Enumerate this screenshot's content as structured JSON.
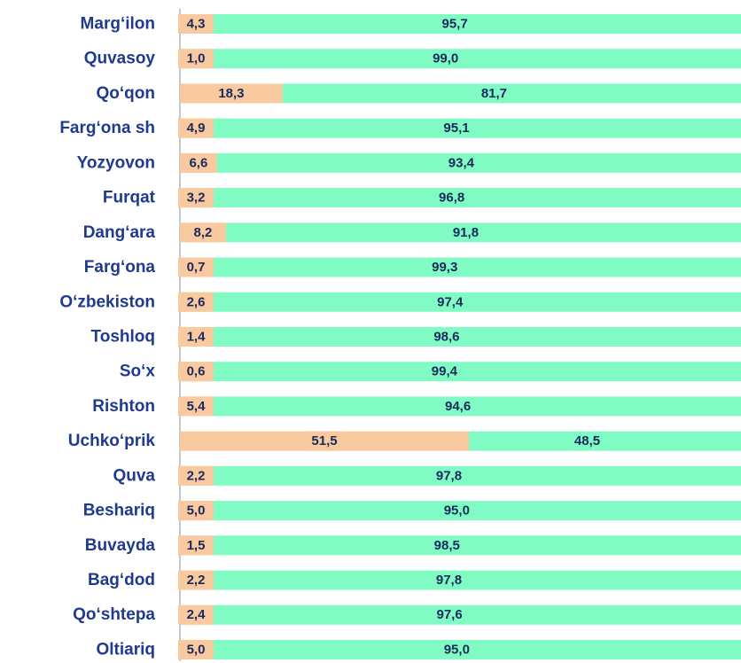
{
  "chart_data": {
    "type": "bar",
    "orientation": "horizontal",
    "stacked": true,
    "categories": [
      "Marg‘ilon",
      "Quvasoy",
      "Qo‘qon",
      "Farg‘ona sh",
      "Yozyovon",
      "Furqat",
      "Dang‘ara",
      "Farg‘ona",
      "O‘zbekiston",
      "Toshloq",
      "So‘x",
      "Rishton",
      "Uchko‘prik",
      "Quva",
      "Beshariq",
      "Buvayda",
      "Bag‘dod",
      "Qo‘shtepa",
      "Oltiariq"
    ],
    "xlim": [
      0,
      100
    ],
    "series": [
      {
        "color": "#f9c9a0",
        "values": [
          4.3,
          1.0,
          18.3,
          4.9,
          6.6,
          3.2,
          8.2,
          0.7,
          2.6,
          1.4,
          0.6,
          5.4,
          51.5,
          2.2,
          5.0,
          1.5,
          2.2,
          2.4,
          5.0
        ],
        "value_labels": [
          "4,3",
          "1,0",
          "18,3",
          "4,9",
          "6,6",
          "3,2",
          "8,2",
          "0,7",
          "2,6",
          "1,4",
          "0,6",
          "5,4",
          "51,5",
          "2,2",
          "5,0",
          "1,5",
          "2,2",
          "2,4",
          "5,0"
        ]
      },
      {
        "color": "#80fbc4",
        "values": [
          95.7,
          99.0,
          81.7,
          95.1,
          93.4,
          96.8,
          91.8,
          99.3,
          97.4,
          98.6,
          99.4,
          94.6,
          48.5,
          97.8,
          95.0,
          98.5,
          97.8,
          97.6,
          95.0
        ],
        "value_labels": [
          "95,7",
          "99,0",
          "81,7",
          "95,1",
          "93,4",
          "96,8",
          "91,8",
          "99,3",
          "97,4",
          "98,6",
          "99,4",
          "94,6",
          "48,5",
          "97,8",
          "95,0",
          "98,5",
          "97,8",
          "97,6",
          "95,0"
        ]
      }
    ]
  }
}
